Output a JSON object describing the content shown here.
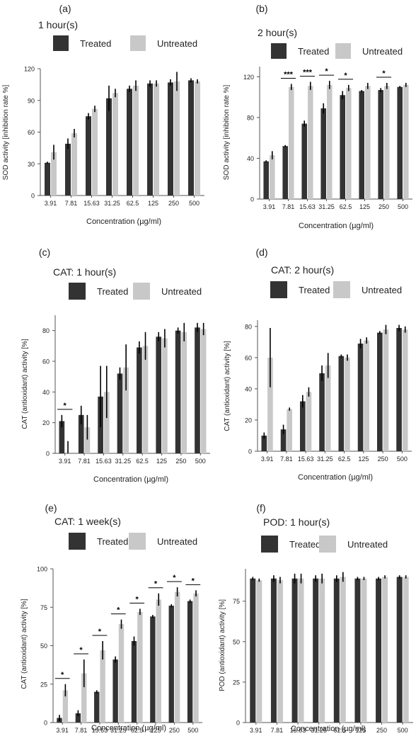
{
  "colors": {
    "treated": "#333333",
    "untreated": "#c8c8c8",
    "axis": "#555555",
    "text": "#222222"
  },
  "chart_data": [
    {
      "panel": "(a)",
      "title": "1 hour(s)",
      "type": "bar",
      "categories": [
        "3.91",
        "7.81",
        "15.63",
        "31.25",
        "62.5",
        "125",
        "250",
        "500"
      ],
      "xlabel": "Concentration (µg/ml)",
      "ylabel": "SOD activity [inhibition rate %]",
      "ylim": [
        0,
        120
      ],
      "yticks": [
        0,
        30,
        60,
        90,
        120
      ],
      "legend": [
        "Treated",
        "Untreated"
      ],
      "series": [
        {
          "name": "Treated",
          "values": [
            31,
            49,
            75,
            92,
            101,
            106,
            107,
            109
          ],
          "errors": [
            1,
            5,
            3,
            12,
            3,
            3,
            3,
            2
          ]
        },
        {
          "name": "Untreated",
          "values": [
            41,
            59,
            82,
            97,
            104,
            106,
            108,
            108
          ],
          "errors": [
            7,
            4,
            3,
            4,
            5,
            3,
            9,
            2
          ]
        }
      ],
      "significance": []
    },
    {
      "panel": "(b)",
      "title": "2 hour(s)",
      "type": "bar",
      "categories": [
        "3.91",
        "7.81",
        "15.63",
        "31.25",
        "62.5",
        "125",
        "250",
        "500"
      ],
      "xlabel": "Concentration (µg/ml)",
      "ylabel": "SOD activity [inhibition rate %]",
      "ylim": [
        0,
        130
      ],
      "yticks": [
        0,
        40,
        80,
        120
      ],
      "legend": [
        "Treated",
        "Untreated"
      ],
      "series": [
        {
          "name": "Treated",
          "values": [
            37,
            52,
            74,
            89,
            102,
            106,
            107,
            110
          ],
          "errors": [
            1,
            1,
            3,
            5,
            4,
            1,
            2,
            1
          ]
        },
        {
          "name": "Untreated",
          "values": [
            43,
            110,
            111,
            112,
            109,
            111,
            111,
            112
          ],
          "errors": [
            4,
            3,
            4,
            4,
            3,
            3,
            3,
            2
          ]
        }
      ],
      "significance": [
        {
          "category": "7.81",
          "label": "***"
        },
        {
          "category": "15.63",
          "label": "***"
        },
        {
          "category": "31.25",
          "label": "*"
        },
        {
          "category": "62.5",
          "label": "*"
        },
        {
          "category": "250",
          "label": "*"
        }
      ]
    },
    {
      "panel": "(c)",
      "title": "CAT: 1 hour(s)",
      "type": "bar",
      "categories": [
        "3.91",
        "7.81",
        "15.63",
        "31.25",
        "62.5",
        "125",
        "250",
        "500"
      ],
      "xlabel": "Concentration (µg/ml)",
      "ylabel": "CAT (antioxidant) activity [%]",
      "ylim": [
        0,
        90
      ],
      "yticks": [
        0,
        20,
        40,
        60,
        80
      ],
      "legend": [
        "Treated",
        "Untreated"
      ],
      "series": [
        {
          "name": "Treated",
          "values": [
            21,
            25,
            37,
            52,
            69,
            76,
            80,
            82
          ],
          "errors": [
            4,
            6,
            20,
            4,
            4,
            3,
            2,
            3
          ]
        },
        {
          "name": "Untreated",
          "values": [
            0,
            17,
            40,
            56,
            70,
            75,
            79,
            81
          ],
          "errors": [
            8,
            8,
            17,
            15,
            9,
            6,
            6,
            4
          ]
        }
      ],
      "significance": [
        {
          "category": "3.91",
          "label": "*"
        }
      ]
    },
    {
      "panel": "(d)",
      "title": "CAT: 2 hour(s)",
      "type": "bar",
      "categories": [
        "3.91",
        "7.81",
        "15.63",
        "31.25",
        "62.5",
        "125",
        "250",
        "500"
      ],
      "xlabel": "Concentration (µg/ml)",
      "ylabel": "CAT (antioxidant) activity [%]",
      "ylim": [
        0,
        84
      ],
      "yticks": [
        0,
        20,
        40,
        60,
        80
      ],
      "legend": [
        "Treated",
        "Untreated"
      ],
      "series": [
        {
          "name": "Treated",
          "values": [
            10,
            14,
            32,
            50,
            61,
            69,
            76,
            79
          ],
          "errors": [
            2,
            3,
            4,
            5,
            1,
            3,
            1,
            2
          ]
        },
        {
          "name": "Untreated",
          "values": [
            60,
            27,
            38,
            55,
            60,
            71,
            78,
            78
          ],
          "errors": [
            19,
            1,
            3,
            8,
            2,
            2,
            3,
            2
          ]
        }
      ],
      "significance": []
    },
    {
      "panel": "(e)",
      "title": "CAT: 1 week(s)",
      "type": "bar",
      "categories": [
        "3.91",
        "7.81",
        "15.63",
        "31.25",
        "62.5",
        "125",
        "250",
        "500"
      ],
      "xlabel": "Concentration (µg/ml)",
      "ylabel": "CAT (antioxidant) activity [%]",
      "ylim": [
        0,
        100
      ],
      "yticks": [
        0,
        25,
        50,
        75,
        100
      ],
      "legend": [
        "Treated",
        "Untreated"
      ],
      "series": [
        {
          "name": "Treated",
          "values": [
            3,
            6,
            20,
            41,
            53,
            69,
            76,
            79
          ],
          "errors": [
            2,
            2,
            1,
            2,
            3,
            1,
            1,
            1
          ]
        },
        {
          "name": "Untreated",
          "values": [
            21,
            32,
            47,
            64,
            72,
            80,
            85,
            84
          ],
          "errors": [
            4,
            9,
            6,
            3,
            2,
            4,
            3,
            2
          ]
        }
      ],
      "significance": [
        {
          "category": "3.91",
          "label": "*"
        },
        {
          "category": "7.81",
          "label": "*"
        },
        {
          "category": "15.63",
          "label": "*"
        },
        {
          "category": "31.25",
          "label": "*"
        },
        {
          "category": "62.5",
          "label": "*"
        },
        {
          "category": "125",
          "label": "*"
        },
        {
          "category": "250",
          "label": "*"
        },
        {
          "category": "500",
          "label": "*"
        }
      ]
    },
    {
      "panel": "(f)",
      "title": "POD: 1 hour(s)",
      "type": "bar",
      "categories": [
        "3.91",
        "7.81",
        "15.63",
        "31.25",
        "62.5",
        "125",
        "250",
        "500"
      ],
      "xlabel": "Concentration (µg/ml)",
      "ylabel": "POD (antioxidant) activity [%]",
      "ylim": [
        0,
        95
      ],
      "yticks": [
        0,
        25,
        50,
        75
      ],
      "legend": [
        "Treated",
        "Untreated"
      ],
      "series": [
        {
          "name": "Treated",
          "values": [
            89,
            89,
            89,
            89,
            89,
            89,
            89,
            90
          ],
          "errors": [
            1,
            2,
            3,
            2,
            2,
            1,
            1,
            1
          ]
        },
        {
          "name": "Untreated",
          "values": [
            88,
            88,
            89,
            89,
            90,
            89,
            90,
            90
          ],
          "errors": [
            1,
            2,
            3,
            3,
            3,
            1,
            1,
            1
          ]
        }
      ],
      "significance": []
    }
  ]
}
